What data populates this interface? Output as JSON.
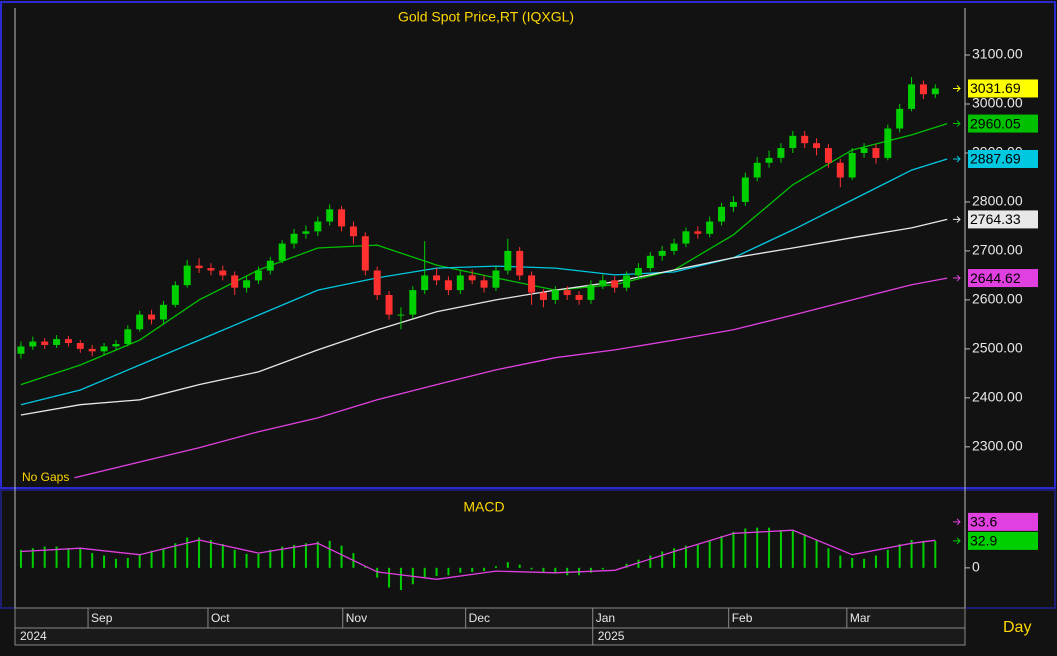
{
  "chart_data": [
    {
      "type": "candlestick",
      "title": "Gold Spot Price,RT (IQXGL)",
      "note": "No Gaps",
      "xlim": [
        0,
        160
      ],
      "ylim": [
        2218,
        3196
      ],
      "yticks": [
        {
          "value": 2300,
          "label": "2300.00"
        },
        {
          "value": 2400,
          "label": "2400.00"
        },
        {
          "value": 2500,
          "label": "2500.00"
        },
        {
          "value": 2600,
          "label": "2600.00"
        },
        {
          "value": 2700,
          "label": "2700.00"
        },
        {
          "value": 2800,
          "label": "2800.00"
        },
        {
          "value": 2900,
          "label": "2900.00"
        },
        {
          "value": 3000,
          "label": "3000.00"
        },
        {
          "value": 3100,
          "label": "3100.00"
        }
      ],
      "up_color": "#00d000",
      "down_color": "#ff3030",
      "x": [
        1,
        3,
        5,
        7,
        9,
        11,
        13,
        15,
        17,
        19,
        21,
        23,
        25,
        27,
        29,
        31,
        33,
        35,
        37,
        39,
        41,
        43,
        45,
        47,
        49,
        51,
        53,
        55,
        57,
        59,
        61,
        63,
        65,
        67,
        69,
        71,
        73,
        75,
        77,
        79,
        81,
        83,
        85,
        87,
        89,
        91,
        93,
        95,
        97,
        99,
        101,
        103,
        105,
        107,
        109,
        111,
        113,
        115,
        117,
        119,
        121,
        123,
        125,
        127,
        129,
        131,
        133,
        135,
        137,
        139,
        141,
        143,
        145,
        147,
        149,
        151,
        153,
        155
      ],
      "open": [
        2490,
        2505,
        2515,
        2508,
        2520,
        2512,
        2500,
        2495,
        2505,
        2510,
        2540,
        2570,
        2560,
        2590,
        2630,
        2670,
        2665,
        2660,
        2650,
        2625,
        2640,
        2660,
        2680,
        2715,
        2735,
        2740,
        2760,
        2785,
        2750,
        2730,
        2660,
        2610,
        2570,
        2570,
        2620,
        2650,
        2640,
        2620,
        2650,
        2640,
        2625,
        2660,
        2700,
        2650,
        2615,
        2600,
        2620,
        2610,
        2600,
        2630,
        2640,
        2625,
        2650,
        2665,
        2690,
        2700,
        2715,
        2740,
        2735,
        2760,
        2790,
        2800,
        2850,
        2880,
        2890,
        2910,
        2935,
        2920,
        2910,
        2880,
        2850,
        2900,
        2910,
        2890,
        2950,
        2990,
        3040,
        3020
      ],
      "high": [
        2515,
        2525,
        2522,
        2528,
        2526,
        2518,
        2508,
        2512,
        2518,
        2548,
        2578,
        2580,
        2598,
        2638,
        2682,
        2685,
        2675,
        2670,
        2658,
        2648,
        2668,
        2688,
        2722,
        2745,
        2752,
        2770,
        2795,
        2792,
        2760,
        2738,
        2668,
        2618,
        2585,
        2628,
        2720,
        2665,
        2648,
        2660,
        2662,
        2650,
        2668,
        2725,
        2708,
        2658,
        2622,
        2628,
        2628,
        2618,
        2640,
        2652,
        2648,
        2658,
        2675,
        2698,
        2710,
        2725,
        2748,
        2750,
        2770,
        2798,
        2812,
        2860,
        2892,
        2905,
        2920,
        2945,
        2945,
        2930,
        2918,
        2888,
        2910,
        2920,
        2918,
        2958,
        3000,
        3055,
        3048,
        3040
      ],
      "low": [
        2480,
        2498,
        2500,
        2502,
        2505,
        2492,
        2485,
        2488,
        2498,
        2505,
        2535,
        2550,
        2552,
        2585,
        2625,
        2655,
        2650,
        2640,
        2610,
        2615,
        2632,
        2652,
        2675,
        2705,
        2725,
        2730,
        2752,
        2740,
        2715,
        2650,
        2600,
        2560,
        2540,
        2562,
        2612,
        2630,
        2610,
        2612,
        2632,
        2615,
        2618,
        2652,
        2640,
        2590,
        2585,
        2592,
        2600,
        2590,
        2592,
        2622,
        2615,
        2618,
        2642,
        2658,
        2680,
        2692,
        2708,
        2725,
        2728,
        2752,
        2780,
        2792,
        2842,
        2870,
        2880,
        2900,
        2910,
        2895,
        2870,
        2830,
        2845,
        2890,
        2878,
        2885,
        2942,
        2985,
        3010,
        3012
      ],
      "close": [
        2505,
        2515,
        2508,
        2520,
        2512,
        2500,
        2495,
        2505,
        2510,
        2540,
        2570,
        2560,
        2590,
        2630,
        2670,
        2665,
        2660,
        2650,
        2625,
        2640,
        2660,
        2680,
        2715,
        2735,
        2740,
        2760,
        2785,
        2750,
        2730,
        2660,
        2610,
        2570,
        2570,
        2620,
        2650,
        2640,
        2620,
        2650,
        2640,
        2625,
        2660,
        2700,
        2650,
        2615,
        2600,
        2620,
        2610,
        2600,
        2630,
        2640,
        2625,
        2650,
        2665,
        2690,
        2700,
        2715,
        2740,
        2735,
        2760,
        2790,
        2800,
        2850,
        2880,
        2890,
        2910,
        2935,
        2920,
        2910,
        2880,
        2850,
        2900,
        2910,
        2890,
        2950,
        2990,
        3040,
        3020,
        3031.69
      ],
      "close_tag_color": "#ffff00",
      "series": [
        {
          "color": "#00c000",
          "x": [
            1,
            11,
            21,
            31,
            41,
            51,
            61,
            71,
            81,
            91,
            101,
            111,
            121,
            131,
            141,
            151,
            157
          ],
          "values": [
            2427,
            2467,
            2518,
            2600,
            2661,
            2706,
            2712,
            2671,
            2645,
            2620,
            2631,
            2661,
            2733,
            2835,
            2906,
            2937,
            2960.05
          ]
        },
        {
          "color": "#00c8e0",
          "x": [
            1,
            11,
            21,
            31,
            41,
            51,
            61,
            71,
            81,
            91,
            101,
            111,
            121,
            131,
            141,
            151,
            157
          ],
          "values": [
            2386,
            2416,
            2467,
            2518,
            2569,
            2620,
            2645,
            2665,
            2669,
            2665,
            2651,
            2657,
            2686,
            2743,
            2804,
            2865,
            2887.69
          ]
        },
        {
          "color": "#e8e8e8",
          "x": [
            1,
            11,
            21,
            31,
            41,
            51,
            61,
            71,
            81,
            91,
            101,
            111,
            121,
            131,
            141,
            151,
            157
          ],
          "values": [
            2365,
            2386,
            2396,
            2427,
            2453,
            2498,
            2539,
            2576,
            2600,
            2620,
            2637,
            2661,
            2686,
            2706,
            2727,
            2747,
            2764.33
          ]
        },
        {
          "color": "#e040e0",
          "x": [
            10,
            21,
            31,
            41,
            51,
            61,
            71,
            81,
            91,
            101,
            111,
            121,
            131,
            141,
            151,
            157
          ],
          "values": [
            2237,
            2269,
            2298,
            2331,
            2359,
            2396,
            2427,
            2457,
            2482,
            2498,
            2518,
            2539,
            2569,
            2600,
            2631,
            2644.62
          ]
        }
      ]
    },
    {
      "type": "bar",
      "title": "MACD",
      "period_label": "Day",
      "xlim": [
        0,
        160
      ],
      "ylim": [
        -49,
        95
      ],
      "yticks": [
        0
      ],
      "xticks": [
        {
          "value": 12.3,
          "label": "Sep"
        },
        {
          "value": 32.5,
          "label": "Oct"
        },
        {
          "value": 55.2,
          "label": "Nov"
        },
        {
          "value": 75.9,
          "label": "Dec"
        },
        {
          "value": 97.3,
          "label": "Jan"
        },
        {
          "value": 120.2,
          "label": "Feb"
        },
        {
          "value": 140.1,
          "label": "Mar"
        }
      ],
      "xticks2": [
        {
          "value": 0,
          "label": "2024"
        },
        {
          "value": 97.3,
          "label": "2025"
        }
      ],
      "series": [
        {
          "style": "bar",
          "color": "#00d000",
          "x": [
            1,
            3,
            5,
            7,
            9,
            11,
            13,
            15,
            17,
            19,
            21,
            23,
            25,
            27,
            29,
            31,
            33,
            35,
            37,
            39,
            41,
            43,
            45,
            47,
            49,
            51,
            53,
            55,
            57,
            59,
            61,
            63,
            65,
            67,
            69,
            71,
            73,
            75,
            77,
            79,
            81,
            83,
            85,
            87,
            89,
            91,
            93,
            95,
            97,
            99,
            101,
            103,
            105,
            107,
            109,
            111,
            113,
            115,
            117,
            119,
            121,
            123,
            125,
            127,
            129,
            131,
            133,
            135,
            137,
            139,
            141,
            143,
            145,
            147,
            149,
            151,
            153,
            155
          ],
          "values": [
            22,
            24,
            26,
            26,
            24,
            24,
            18,
            15,
            11,
            12,
            17,
            21,
            23,
            30,
            37,
            37,
            34,
            29,
            22,
            17,
            17,
            22,
            26,
            28,
            30,
            32,
            33,
            27,
            18,
            2,
            -12,
            -24,
            -27,
            -20,
            -12,
            -10,
            -9,
            -6,
            -5,
            -4,
            2,
            7,
            4,
            -2,
            -6,
            -7,
            -9,
            -9,
            -6,
            -2,
            0,
            5,
            10,
            15,
            20,
            24,
            27,
            29,
            33,
            39,
            44,
            48,
            49,
            49,
            46,
            45,
            41,
            34,
            24,
            15,
            12,
            11,
            15,
            22,
            29,
            34,
            33,
            32.9
          ]
        },
        {
          "style": "line",
          "color": "#e040e0",
          "x": [
            1,
            11,
            21,
            31,
            41,
            51,
            61,
            71,
            81,
            91,
            101,
            111,
            121,
            131,
            141,
            151,
            155
          ],
          "values": [
            20,
            24,
            16,
            34,
            18,
            30,
            -5,
            -14,
            -4,
            -6,
            -3,
            20,
            42,
            46,
            16,
            30,
            33.6
          ]
        }
      ]
    }
  ]
}
